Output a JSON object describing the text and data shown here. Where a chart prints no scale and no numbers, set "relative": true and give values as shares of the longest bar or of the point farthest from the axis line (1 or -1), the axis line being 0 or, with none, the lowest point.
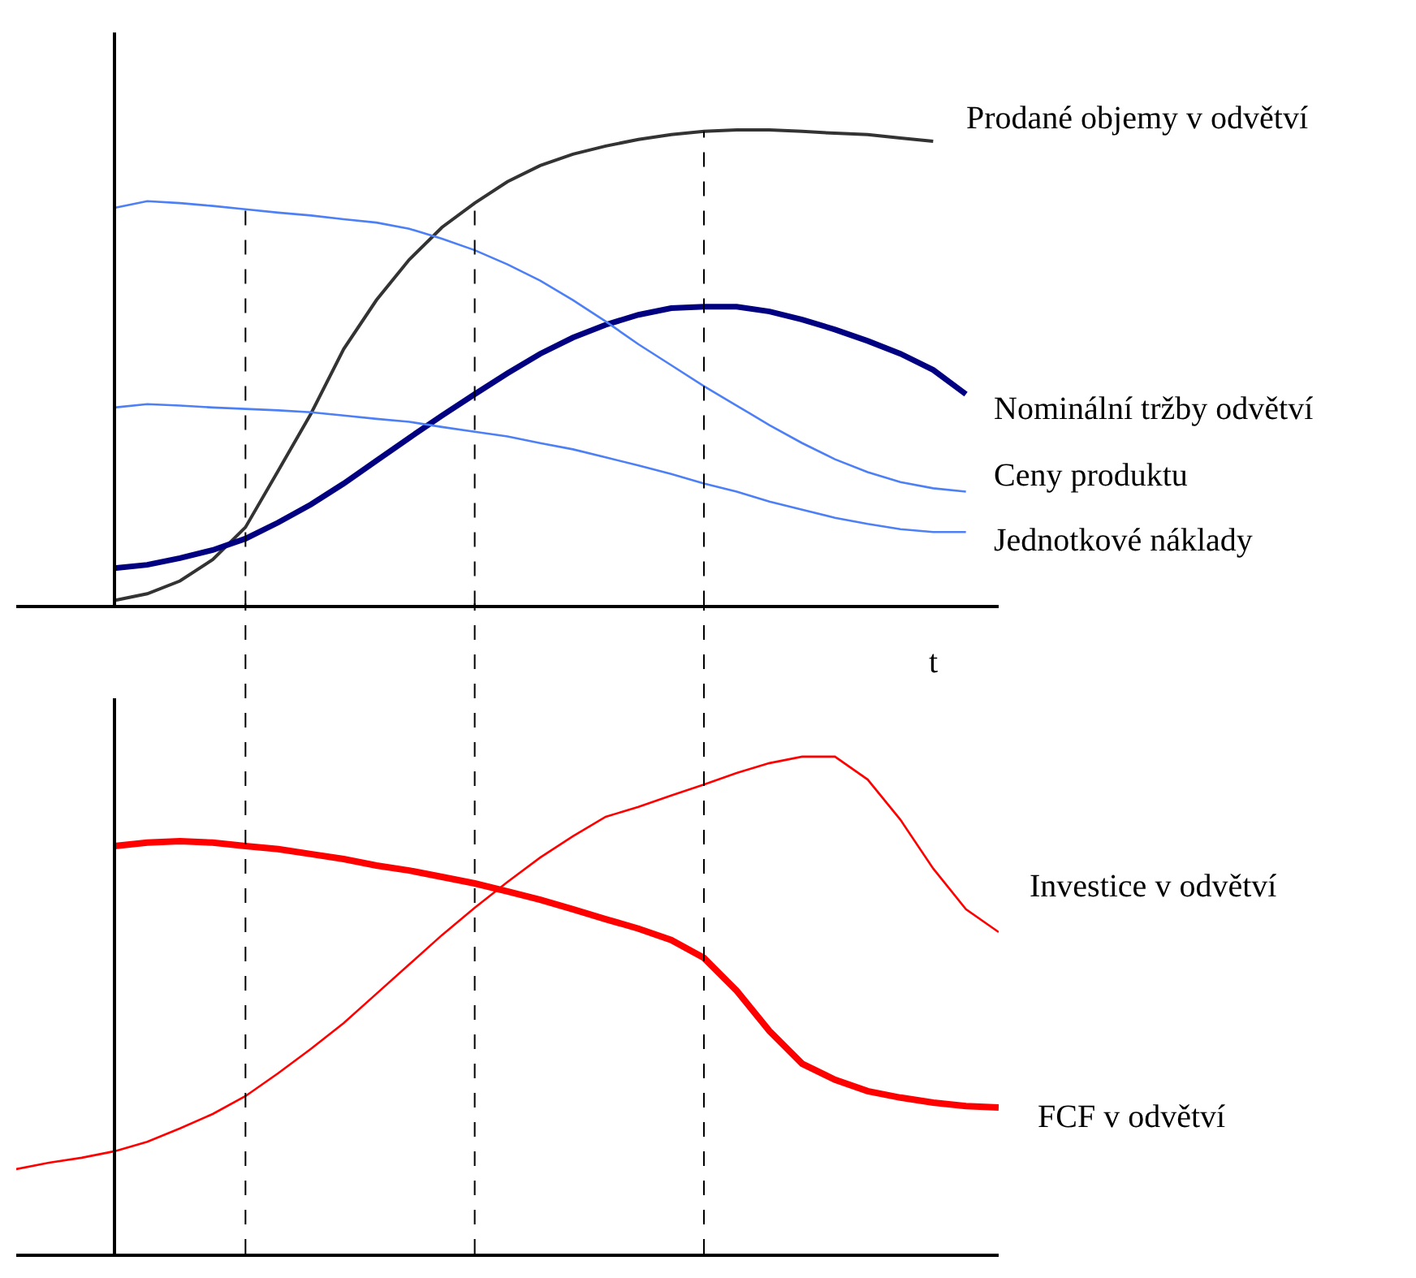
{
  "chart_data": [
    {
      "type": "line",
      "relative": true,
      "legend": false,
      "grid": "x",
      "marker": "none",
      "line_style": "solid",
      "xlabel": "t",
      "categories": [
        null,
        null,
        null,
        null,
        null,
        null,
        null,
        null,
        null,
        null,
        null,
        null,
        null,
        null,
        null,
        null,
        null,
        null,
        null,
        null,
        null,
        null,
        null,
        null,
        null,
        null,
        null,
        null,
        null,
        null,
        null
      ],
      "series": [
        {
          "name": "Prodané objemy v odvětví",
          "color": "#333333",
          "values": [
            null,
            null,
            null,
            0.01,
            0.024,
            0.051,
            0.096,
            0.164,
            0.283,
            0.403,
            0.539,
            0.642,
            0.727,
            0.795,
            0.846,
            0.891,
            0.925,
            0.949,
            0.966,
            0.98,
            0.99,
            0.997,
            1,
            1,
            0.997,
            0.993,
            0.99,
            0.983,
            0.976,
            null,
            null
          ]
        },
        {
          "name": "Nominální tržby odvětví",
          "color": "#000080",
          "values": [
            null,
            null,
            null,
            0.078,
            0.085,
            0.099,
            0.116,
            0.14,
            0.174,
            0.212,
            0.256,
            0.304,
            0.352,
            0.399,
            0.444,
            0.488,
            0.529,
            0.563,
            0.59,
            0.611,
            0.625,
            0.628,
            0.628,
            0.618,
            0.601,
            0.58,
            0.556,
            0.529,
            0.495,
            0.444,
            null
          ]
        },
        {
          "name": "Ceny produktu",
          "color": "#4d7ff5",
          "values": [
            null,
            null,
            null,
            0.836,
            0.85,
            0.846,
            0.84,
            0.833,
            0.826,
            0.82,
            0.812,
            0.805,
            0.792,
            0.771,
            0.747,
            0.717,
            0.683,
            0.642,
            0.597,
            0.549,
            0.505,
            0.461,
            0.42,
            0.379,
            0.341,
            0.307,
            0.28,
            0.259,
            0.246,
            0.239,
            null
          ]
        },
        {
          "name": "Jednotkové náklady",
          "color": "#4d7ff5",
          "values": [
            null,
            null,
            null,
            0.416,
            0.423,
            0.42,
            0.416,
            0.413,
            0.41,
            0.406,
            0.399,
            0.392,
            0.386,
            0.375,
            0.365,
            0.355,
            0.341,
            0.328,
            0.311,
            0.294,
            0.276,
            0.256,
            0.239,
            0.218,
            0.201,
            0.184,
            0.171,
            0.16,
            0.154,
            0.154,
            null
          ]
        }
      ]
    },
    {
      "type": "line",
      "relative": true,
      "legend": false,
      "grid": "x",
      "marker": "none",
      "line_style": "solid",
      "categories": [
        null,
        null,
        null,
        null,
        null,
        null,
        null,
        null,
        null,
        null,
        null,
        null,
        null,
        null,
        null,
        null,
        null,
        null,
        null,
        null,
        null,
        null,
        null,
        null,
        null,
        null,
        null,
        null,
        null,
        null,
        null
      ],
      "series": [
        {
          "name": "Investice v odvětví",
          "color": "#ff0000",
          "values": [
            0.17,
            0.183,
            0.193,
            0.206,
            0.225,
            0.252,
            0.281,
            0.317,
            0.363,
            0.412,
            0.464,
            0.523,
            0.582,
            0.641,
            0.696,
            0.748,
            0.797,
            0.84,
            0.879,
            0.899,
            0.922,
            0.944,
            0.967,
            0.987,
            1,
            1,
            0.954,
            0.873,
            0.775,
            0.693,
            0.647
          ]
        },
        {
          "name": "FCF v odvětví",
          "color": "#ff0000",
          "values": [
            null,
            null,
            null,
            0.82,
            0.827,
            0.83,
            0.827,
            0.82,
            0.814,
            0.804,
            0.794,
            0.781,
            0.771,
            0.758,
            0.745,
            0.729,
            0.712,
            0.693,
            0.673,
            0.654,
            0.631,
            0.595,
            0.529,
            0.448,
            0.382,
            0.35,
            0.327,
            0.314,
            0.304,
            0.297,
            0.294
          ]
        }
      ]
    }
  ]
}
